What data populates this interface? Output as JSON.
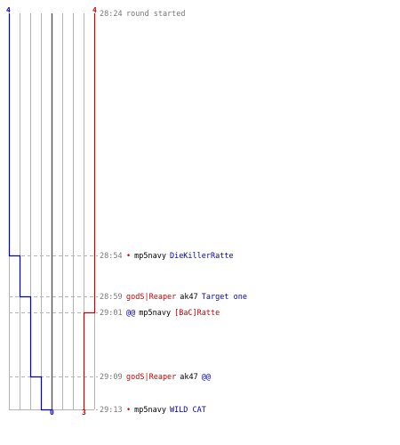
{
  "colors": {
    "team_blue": "#0000cc",
    "team_red": "#cc0000",
    "grid": "#b4b4b4",
    "axis": "#555555",
    "time": "#777777",
    "weapon": "#000000"
  },
  "scores": {
    "blue_start": "4",
    "red_start": "4",
    "blue_end": "0",
    "red_end": "3"
  },
  "events": [
    {
      "time": "28:24",
      "parts": [
        {
          "text": "round started",
          "color": "#777777"
        }
      ]
    },
    {
      "time": "28:54",
      "parts": [
        {
          "text": "•",
          "color": "#cc0000"
        },
        {
          "text": "mp5navy",
          "color": "#000000"
        },
        {
          "text": "DieKillerRatte",
          "color": "#0000cc"
        }
      ]
    },
    {
      "time": "28:59",
      "parts": [
        {
          "text": "godS|Reaper",
          "color": "#cc0000"
        },
        {
          "text": "ak47",
          "color": "#000000"
        },
        {
          "text": "Target one",
          "color": "#0000cc"
        }
      ]
    },
    {
      "time": "29:01",
      "parts": [
        {
          "text": "@@",
          "color": "#0000cc"
        },
        {
          "text": "mp5navy",
          "color": "#000000"
        },
        {
          "text": "[BaC]Ratte",
          "color": "#cc0000"
        }
      ]
    },
    {
      "time": "29:09",
      "parts": [
        {
          "text": "godS|Reaper",
          "color": "#cc0000"
        },
        {
          "text": "ak47",
          "color": "#000000"
        },
        {
          "text": "@@",
          "color": "#0000cc"
        }
      ]
    },
    {
      "time": "29:13",
      "parts": [
        {
          "text": "•",
          "color": "#cc0000"
        },
        {
          "text": "mp5navy",
          "color": "#000000"
        },
        {
          "text": "WILD CAT",
          "color": "#0000cc"
        }
      ]
    }
  ]
}
